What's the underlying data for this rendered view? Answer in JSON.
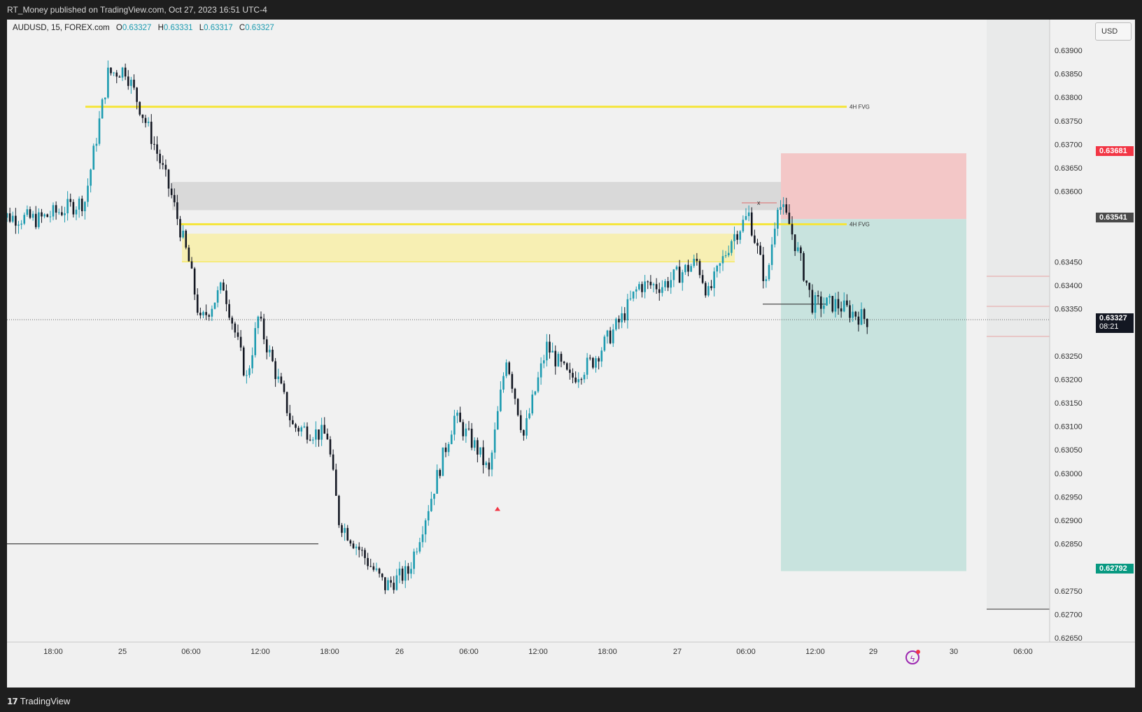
{
  "header": {
    "published": "RT_Money published on TradingView.com, Oct 27, 2023 16:51 UTC-4"
  },
  "legend": {
    "symbol": "AUDUSD, 15, FOREX.com",
    "o_label": "O",
    "o_value": "0.63327",
    "h_label": "H",
    "h_value": "0.63331",
    "l_label": "L",
    "l_value": "0.63317",
    "c_label": "C",
    "c_value": "0.63327"
  },
  "currency_button": "USD",
  "price_axis": {
    "ticks": [
      "0.63900",
      "0.63850",
      "0.63800",
      "0.63750",
      "0.63700",
      "0.63650",
      "0.63600",
      "0.63450",
      "0.63400",
      "0.63350",
      "0.63250",
      "0.63200",
      "0.63150",
      "0.63100",
      "0.63050",
      "0.63000",
      "0.62950",
      "0.62900",
      "0.62850",
      "0.62750",
      "0.62700",
      "0.62650"
    ],
    "tags": {
      "stop": {
        "text": "0.63681",
        "color": "#f23645"
      },
      "entry": {
        "text": "0.63541",
        "color": "#4a4a4a"
      },
      "current": {
        "text": "0.63327",
        "countdown": "08:21",
        "color": "#131722"
      },
      "target": {
        "text": "0.62792",
        "color": "#089981"
      }
    }
  },
  "time_axis": {
    "labels": [
      "18:00",
      "25",
      "06:00",
      "12:00",
      "18:00",
      "26",
      "06:00",
      "12:00",
      "18:00",
      "27",
      "06:00",
      "12:00",
      "29",
      "30",
      "06:00"
    ]
  },
  "annotations": {
    "fvg_upper": "4H FVG",
    "fvg_lower": "4H FVG",
    "x_mark": "x"
  },
  "colors": {
    "up": "#1c9bb0",
    "down": "#131722",
    "fvg_line": "#f5e53b",
    "fvg_zone": "#f7efb3",
    "gray_zone": "#d9d9d9",
    "stop_zone": "#f3c7c7",
    "target_zone": "#c8e3de"
  },
  "footer": {
    "brand": "TradingView"
  },
  "chart_data": {
    "type": "candlestick",
    "symbol": "AUDUSD",
    "timeframe": "15",
    "x_labels": [
      "18:00",
      "25",
      "06:00",
      "12:00",
      "18:00",
      "26",
      "06:00",
      "12:00",
      "18:00",
      "27",
      "06:00",
      "12:00",
      "29"
    ],
    "y_range": [
      0.62625,
      0.63925
    ],
    "approx_close_path": [
      {
        "x": "24 13:00",
        "y": 0.6355
      },
      {
        "x": "24 17:00",
        "y": 0.6354
      },
      {
        "x": "24 21:00",
        "y": 0.6358
      },
      {
        "x": "24 23:00",
        "y": 0.6385
      },
      {
        "x": "25 00:30",
        "y": 0.6386
      },
      {
        "x": "25 03:00",
        "y": 0.637
      },
      {
        "x": "25 04:30",
        "y": 0.6359
      },
      {
        "x": "25 06:00",
        "y": 0.6345
      },
      {
        "x": "25 07:00",
        "y": 0.6332
      },
      {
        "x": "25 09:00",
        "y": 0.634
      },
      {
        "x": "25 11:00",
        "y": 0.632
      },
      {
        "x": "25 12:00",
        "y": 0.6333
      },
      {
        "x": "25 15:00",
        "y": 0.631
      },
      {
        "x": "25 18:00",
        "y": 0.6308
      },
      {
        "x": "25 19:00",
        "y": 0.629
      },
      {
        "x": "25 21:00",
        "y": 0.6283
      },
      {
        "x": "25 23:00",
        "y": 0.6276
      },
      {
        "x": "26 01:00",
        "y": 0.6279
      },
      {
        "x": "26 03:00",
        "y": 0.6295
      },
      {
        "x": "26 05:00",
        "y": 0.6312
      },
      {
        "x": "26 07:00",
        "y": 0.6305
      },
      {
        "x": "26 08:00",
        "y": 0.63
      },
      {
        "x": "26 09:30",
        "y": 0.6325
      },
      {
        "x": "26 11:00",
        "y": 0.6308
      },
      {
        "x": "26 13:00",
        "y": 0.6327
      },
      {
        "x": "26 15:00",
        "y": 0.632
      },
      {
        "x": "26 17:00",
        "y": 0.6324
      },
      {
        "x": "26 19:30",
        "y": 0.6333
      },
      {
        "x": "26 21:00",
        "y": 0.634
      },
      {
        "x": "26 23:00",
        "y": 0.634
      },
      {
        "x": "27 02:00",
        "y": 0.6345
      },
      {
        "x": "27 03:00",
        "y": 0.6338
      },
      {
        "x": "27 05:00",
        "y": 0.635
      },
      {
        "x": "27 06:30",
        "y": 0.6355
      },
      {
        "x": "27 08:00",
        "y": 0.634
      },
      {
        "x": "27 09:00",
        "y": 0.6358
      },
      {
        "x": "27 10:00",
        "y": 0.6353
      },
      {
        "x": "27 11:00",
        "y": 0.6345
      },
      {
        "x": "27 12:00",
        "y": 0.6336
      },
      {
        "x": "27 14:00",
        "y": 0.6336
      },
      {
        "x": "27 16:45",
        "y": 0.63327
      }
    ],
    "levels": {
      "fvg_upper_line": 0.6378,
      "fvg_lower_line": 0.6353,
      "fvg_zone": [
        0.6345,
        0.6351
      ],
      "gray_zone": [
        0.6356,
        0.6362
      ],
      "short_position": {
        "entry": 0.63541,
        "stop": 0.63681,
        "target": 0.62792
      },
      "current_price": 0.63327,
      "low_horizontal": 0.6285,
      "swing_low_marker": 0.6336
    }
  }
}
